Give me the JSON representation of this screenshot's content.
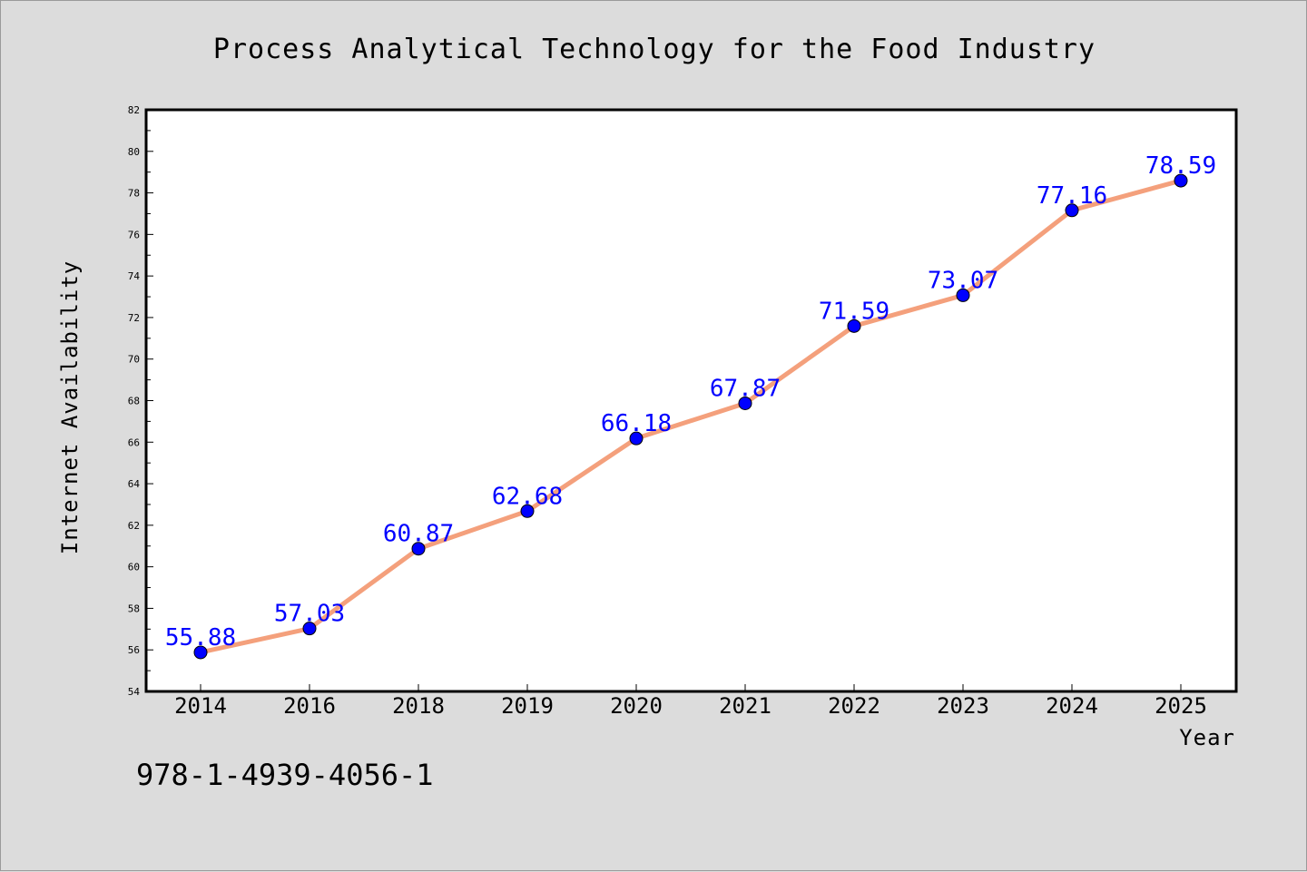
{
  "chart_data": {
    "type": "line",
    "title": "Process Analytical Technology for the Food Industry",
    "xlabel": "Year",
    "ylabel": "Internet Availability",
    "categories": [
      "2014",
      "2016",
      "2018",
      "2019",
      "2020",
      "2021",
      "2022",
      "2023",
      "2024",
      "2025"
    ],
    "series": [
      {
        "values": [
          55.88,
          57.03,
          60.87,
          62.68,
          66.18,
          67.87,
          71.59,
          73.07,
          77.16,
          78.59
        ]
      }
    ],
    "data_labels": [
      "55.88",
      "57.03",
      "60.87",
      "62.68",
      "66.18",
      "67.87",
      "71.59",
      "73.07",
      "77.16",
      "78.59"
    ],
    "ylim": [
      54,
      82
    ],
    "yticks": [
      "54",
      "56",
      "58",
      "60",
      "62",
      "64",
      "66",
      "68",
      "70",
      "72",
      "74",
      "76",
      "78",
      "80",
      "82"
    ],
    "grid": false,
    "legend": "none",
    "line_color": "#f4a07c",
    "marker_color": "#0000ff",
    "label_color": "#0000ff"
  },
  "footer": {
    "isbn": "978-1-4939-4056-1"
  }
}
